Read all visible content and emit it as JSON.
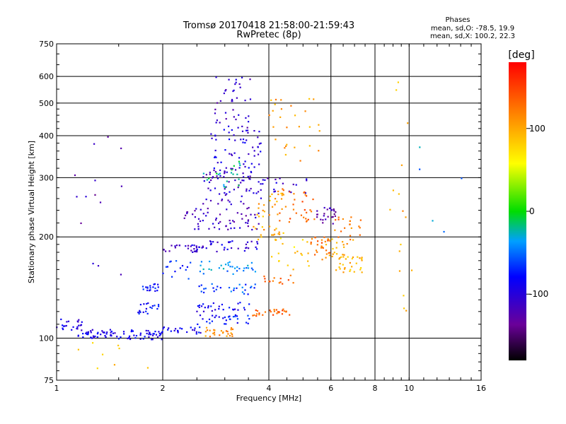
{
  "chart_data": {
    "type": "scatter",
    "title": "Tromsø 20170418 21:58:00-21:59:43",
    "subtitle": "RwPretec (8p)",
    "xlabel": "Frequency [MHz]",
    "ylabel": "Stationary phase Virtual Height [km]",
    "xscale": "log",
    "yscale": "log",
    "xlim": [
      1,
      16
    ],
    "ylim": [
      75,
      750
    ],
    "xticks": [
      1,
      2,
      4,
      6,
      8,
      10,
      16
    ],
    "xticklabels": [
      "1",
      "2",
      "4",
      "6",
      "8",
      "10",
      "16"
    ],
    "yticks": [
      75,
      100,
      200,
      300,
      400,
      500,
      600,
      750
    ],
    "yticklabels": [
      "75",
      "100",
      "200",
      "300",
      "400",
      "500",
      "600",
      "750"
    ],
    "grid": true,
    "stats": {
      "heading": "Phases",
      "line1": "mean, sd,O: -78.5, 19.9",
      "line2": "mean, sd,X: 100.2, 22.3"
    },
    "colorbar": {
      "label": "[deg]",
      "range": [
        -180,
        180
      ],
      "ticks": [
        -100,
        0,
        100
      ],
      "ticklabels": [
        "-100",
        "0",
        "100"
      ]
    },
    "clusters": [
      {
        "f": [
          1.0,
          1.18
        ],
        "h": [
          105,
          115
        ],
        "phase": -95,
        "n": 22
      },
      {
        "f": [
          1.15,
          1.5
        ],
        "h": [
          100,
          106
        ],
        "phase": -95,
        "n": 40
      },
      {
        "f": [
          1.5,
          2.0
        ],
        "h": [
          99,
          106
        ],
        "phase": -90,
        "n": 45
      },
      {
        "f": [
          1.7,
          1.95
        ],
        "h": [
          118,
          128
        ],
        "phase": -80,
        "n": 20
      },
      {
        "f": [
          1.75,
          1.95
        ],
        "h": [
          138,
          146
        ],
        "phase": -80,
        "n": 18
      },
      {
        "f": [
          2.0,
          2.6
        ],
        "h": [
          103,
          108
        ],
        "phase": -85,
        "n": 22
      },
      {
        "f": [
          2.0,
          2.6
        ],
        "h": [
          180,
          190
        ],
        "phase": -115,
        "n": 22
      },
      {
        "f": [
          2.0,
          2.4
        ],
        "h": [
          150,
          170
        ],
        "phase": -75,
        "n": 14
      },
      {
        "f": [
          2.6,
          3.2
        ],
        "h": [
          101,
          108
        ],
        "phase": 110,
        "n": 26
      },
      {
        "f": [
          2.5,
          3.6
        ],
        "h": [
          110,
          118
        ],
        "phase": -75,
        "n": 30
      },
      {
        "f": [
          2.5,
          3.6
        ],
        "h": [
          120,
          128
        ],
        "phase": -90,
        "n": 28
      },
      {
        "f": [
          2.5,
          3.7
        ],
        "h": [
          135,
          145
        ],
        "phase": -60,
        "n": 28
      },
      {
        "f": [
          2.5,
          3.7
        ],
        "h": [
          155,
          170
        ],
        "phase": -40,
        "n": 32
      },
      {
        "f": [
          2.4,
          3.8
        ],
        "h": [
          180,
          195
        ],
        "phase": -100,
        "n": 40
      },
      {
        "f": [
          2.3,
          3.8
        ],
        "h": [
          210,
          245
        ],
        "phase": -115,
        "n": 60
      },
      {
        "f": [
          2.6,
          3.8
        ],
        "h": [
          250,
          320
        ],
        "phase": -110,
        "n": 70
      },
      {
        "f": [
          2.7,
          3.8
        ],
        "h": [
          320,
          420
        ],
        "phase": -95,
        "n": 55
      },
      {
        "f": [
          2.8,
          3.6
        ],
        "h": [
          420,
          600
        ],
        "phase": -110,
        "n": 40
      },
      {
        "f": [
          2.6,
          3.4
        ],
        "h": [
          280,
          340
        ],
        "phase": -20,
        "n": 20
      },
      {
        "f": [
          3.6,
          4.6
        ],
        "h": [
          116,
          122
        ],
        "phase": 135,
        "n": 28
      },
      {
        "f": [
          3.8,
          4.8
        ],
        "h": [
          145,
          155
        ],
        "phase": 135,
        "n": 14
      },
      {
        "f": [
          3.6,
          4.4
        ],
        "h": [
          195,
          215
        ],
        "phase": 100,
        "n": 20
      },
      {
        "f": [
          3.7,
          4.6
        ],
        "h": [
          230,
          270
        ],
        "phase": 100,
        "n": 25
      },
      {
        "f": [
          3.7,
          5.2
        ],
        "h": [
          270,
          300
        ],
        "phase": -110,
        "n": 20
      },
      {
        "f": [
          4.2,
          5.4
        ],
        "h": [
          220,
          280
        ],
        "phase": 130,
        "n": 30
      },
      {
        "f": [
          4.0,
          5.6
        ],
        "h": [
          330,
          520
        ],
        "phase": 105,
        "n": 28
      },
      {
        "f": [
          4.0,
          5.2
        ],
        "h": [
          160,
          200
        ],
        "phase": 80,
        "n": 18
      },
      {
        "f": [
          5.2,
          6.0
        ],
        "h": [
          175,
          200
        ],
        "phase": 130,
        "n": 25
      },
      {
        "f": [
          5.4,
          6.2
        ],
        "h": [
          215,
          245
        ],
        "phase": -125,
        "n": 25
      },
      {
        "f": [
          5.6,
          7.0
        ],
        "h": [
          160,
          200
        ],
        "phase": 100,
        "n": 30
      },
      {
        "f": [
          6.2,
          7.4
        ],
        "h": [
          155,
          175
        ],
        "phase": 95,
        "n": 22
      },
      {
        "f": [
          6.0,
          7.3
        ],
        "h": [
          195,
          230
        ],
        "phase": 120,
        "n": 20
      },
      {
        "f": [
          8.8,
          10.2
        ],
        "h": [
          120,
          620
        ],
        "phase": 100,
        "n": 16
      },
      {
        "f": [
          1.1,
          1.6
        ],
        "h": [
          150,
          400
        ],
        "phase": -120,
        "n": 14
      },
      {
        "f": [
          1.0,
          2.2
        ],
        "h": [
          80,
          100
        ],
        "phase": 80,
        "n": 8
      },
      {
        "f": [
          10.0,
          15.5
        ],
        "h": [
          200,
          400
        ],
        "phase": -40,
        "n": 5
      }
    ]
  }
}
